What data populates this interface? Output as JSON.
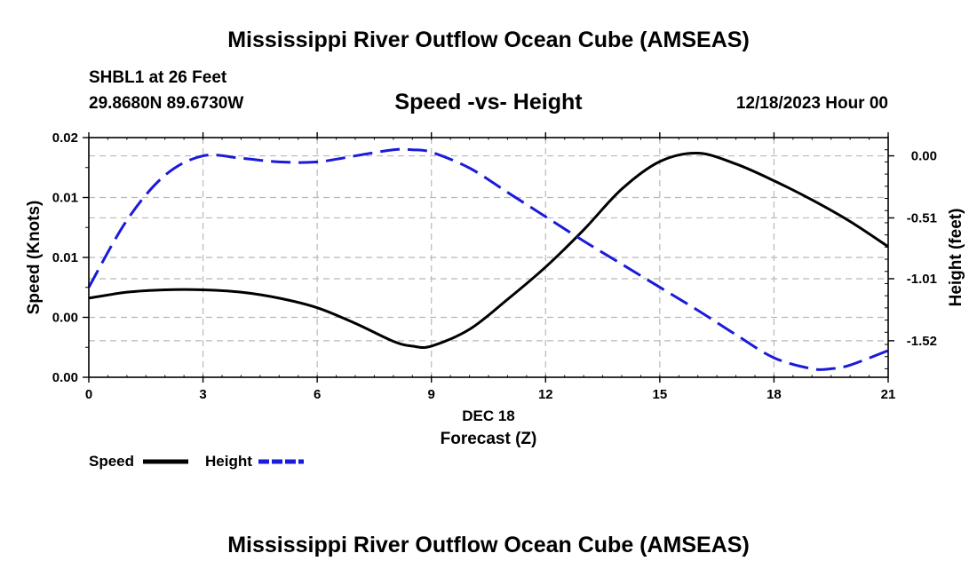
{
  "header": {
    "title": "Mississippi River Outflow Ocean Cube (AMSEAS)",
    "station_line": "SHBL1 at 26 Feet",
    "coords_line": "29.8680N  89.6730W",
    "chart_title": "Speed -vs- Height",
    "run_time": "12/18/2023 Hour 00",
    "footer_title": "Mississippi River Outflow Ocean Cube (AMSEAS)"
  },
  "chart_data": {
    "type": "line",
    "title": "Speed -vs- Height",
    "xlabel": "Forecast (Z)",
    "xlabel_date": "DEC 18",
    "ylabel": "Speed (Knots)",
    "y2label": "Height (feet)",
    "xlim": [
      0,
      21
    ],
    "ylim": [
      0,
      0.02
    ],
    "y2lim": [
      -1.82,
      0.15
    ],
    "x_ticks": [
      0,
      3,
      6,
      9,
      12,
      15,
      18,
      21
    ],
    "x_tick_labels": [
      "0",
      "3",
      "6",
      "9",
      "12",
      "15",
      "18",
      "21"
    ],
    "y_ticks": [
      0,
      0.005,
      0.01,
      0.015,
      0.02
    ],
    "y_tick_labels": [
      "0.00",
      "0.00",
      "0.01",
      "0.01",
      "0.02"
    ],
    "y2_ticks": [
      0.0,
      -0.51,
      -1.01,
      -1.52
    ],
    "y2_tick_labels": [
      "0.00",
      "-0.51",
      "-1.01",
      "-1.52"
    ],
    "grid": true,
    "legend_position": "bottom-left",
    "series": [
      {
        "name": "Speed",
        "axis": "left",
        "color": "#000000",
        "dash": "solid",
        "x": [
          0,
          1,
          2,
          3,
          4,
          5,
          6,
          7,
          8,
          8.5,
          9,
          10,
          11,
          12,
          13,
          14,
          15,
          16,
          17,
          18,
          19,
          20,
          21
        ],
        "values": [
          0.0066,
          0.0071,
          0.0073,
          0.0073,
          0.0071,
          0.0066,
          0.0058,
          0.0045,
          0.003,
          0.0026,
          0.0026,
          0.004,
          0.0065,
          0.0092,
          0.0123,
          0.0157,
          0.018,
          0.0187,
          0.0178,
          0.0164,
          0.0148,
          0.013,
          0.0109
        ]
      },
      {
        "name": "Height",
        "axis": "right",
        "color": "#1a1adb",
        "dash": "dashed",
        "x": [
          0,
          1,
          2,
          3,
          4,
          5,
          6,
          7,
          8,
          8.5,
          9,
          10,
          11,
          12,
          13,
          14,
          15,
          16,
          17,
          18,
          19,
          19.5,
          20,
          21
        ],
        "values": [
          -1.08,
          -0.53,
          -0.16,
          0.0,
          -0.02,
          -0.05,
          -0.05,
          0.0,
          0.05,
          0.05,
          0.03,
          -0.1,
          -0.3,
          -0.5,
          -0.7,
          -0.89,
          -1.08,
          -1.27,
          -1.47,
          -1.66,
          -1.75,
          -1.75,
          -1.72,
          -1.6
        ]
      }
    ]
  }
}
